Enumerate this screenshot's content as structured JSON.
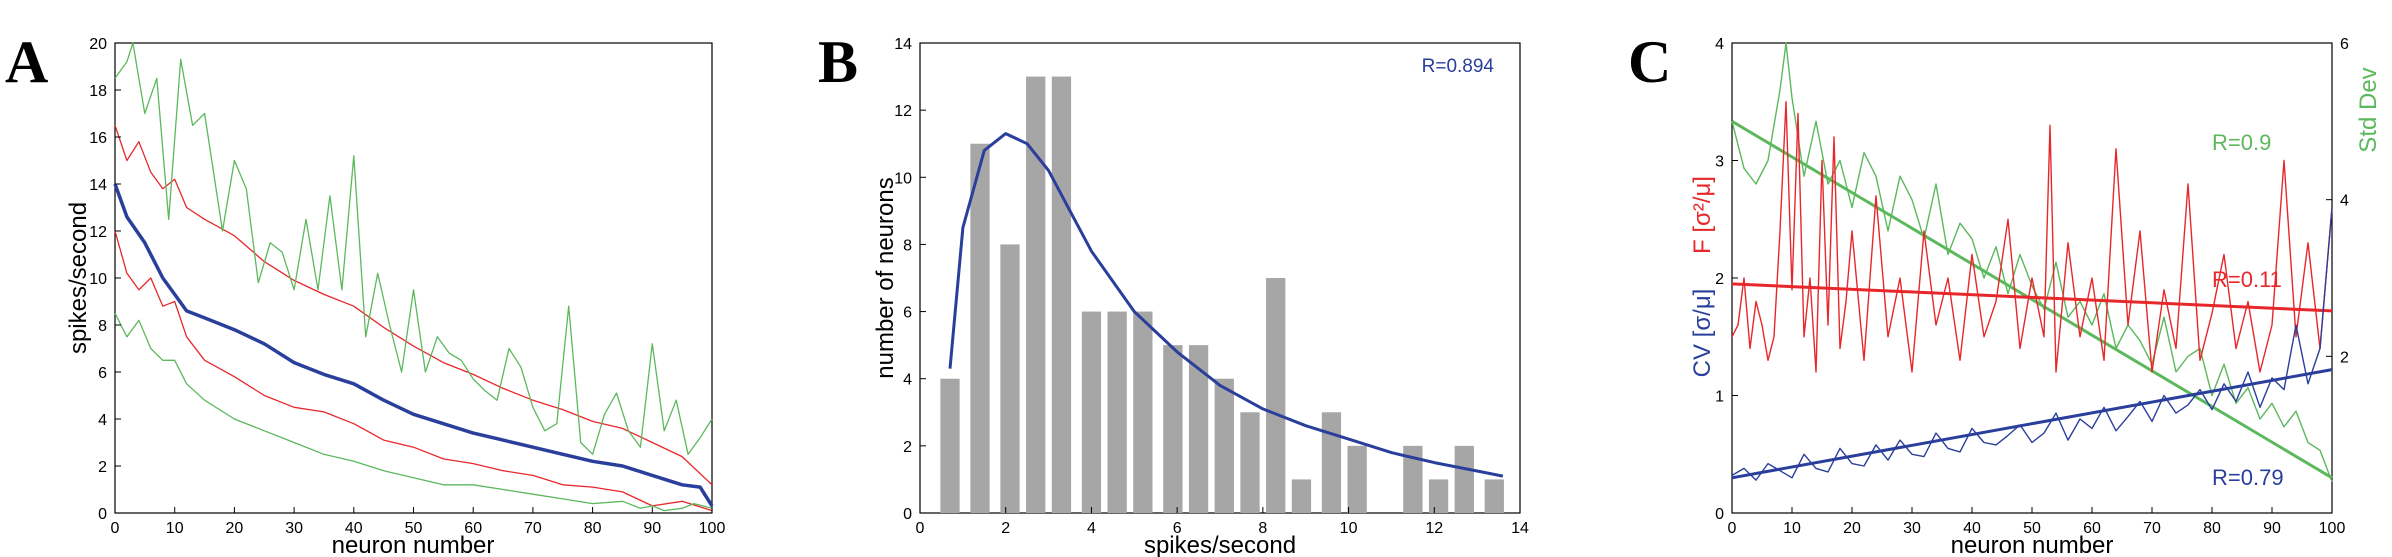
{
  "panels": [
    {
      "letter": "A",
      "xlabel": "neuron number",
      "ylabel": "spikes/second",
      "xticks": [
        "0",
        "10",
        "20",
        "30",
        "40",
        "50",
        "60",
        "70",
        "80",
        "90",
        "100"
      ],
      "yticks": [
        "0",
        "2",
        "4",
        "6",
        "8",
        "10",
        "12",
        "14",
        "16",
        "18",
        "20"
      ]
    },
    {
      "letter": "B",
      "xlabel": "spikes/second",
      "ylabel": "number of neurons",
      "xticks": [
        "0",
        "2",
        "4",
        "6",
        "8",
        "10",
        "12",
        "14"
      ],
      "yticks": [
        "0",
        "2",
        "4",
        "6",
        "8",
        "10",
        "12",
        "14"
      ],
      "annotation": "R=0.894"
    },
    {
      "letter": "C",
      "xlabel": "neuron number",
      "xticks": [
        "0",
        "10",
        "20",
        "30",
        "40",
        "50",
        "60",
        "70",
        "80",
        "90",
        "100"
      ],
      "left_yticks": [
        "0",
        "1",
        "2",
        "3",
        "4"
      ],
      "right_yticks": [
        "2",
        "4",
        "6"
      ],
      "ylabel_cv": "CV [σ/μ]",
      "ylabel_f": "F [σ²/μ]",
      "ylabel_std": "Std Dev",
      "annotations": [
        "R=0.9",
        "R=0.11",
        "R=0.79"
      ]
    }
  ],
  "colors": {
    "blue": "#2a3f9c",
    "red": "#e8272a",
    "green": "#5cb85c",
    "bar": "#a6a6a6"
  },
  "chart_data": [
    {
      "type": "line",
      "title": "",
      "xlabel": "neuron number",
      "ylabel": "spikes/second",
      "xlim": [
        0,
        100
      ],
      "ylim": [
        0,
        20
      ],
      "series": [
        {
          "color": "blue",
          "role": "mean",
          "x": [
            0,
            2,
            5,
            8,
            10,
            12,
            15,
            20,
            25,
            30,
            35,
            40,
            45,
            50,
            55,
            60,
            65,
            70,
            75,
            80,
            85,
            90,
            95,
            98,
            100
          ],
          "y": [
            14,
            12.6,
            11.5,
            10,
            9.3,
            8.6,
            8.3,
            7.8,
            7.2,
            6.4,
            5.9,
            5.5,
            4.8,
            4.2,
            3.8,
            3.4,
            3.1,
            2.8,
            2.5,
            2.2,
            2.0,
            1.6,
            1.2,
            1.1,
            0.3
          ]
        },
        {
          "color": "red",
          "role": "mean+sd",
          "x": [
            0,
            2,
            4,
            6,
            8,
            10,
            12,
            15,
            20,
            25,
            30,
            35,
            40,
            45,
            50,
            55,
            60,
            65,
            70,
            75,
            80,
            85,
            90,
            95,
            100
          ],
          "y": [
            16.5,
            15,
            15.8,
            14.5,
            13.8,
            14.2,
            13,
            12.5,
            11.8,
            10.7,
            9.9,
            9.3,
            8.8,
            7.9,
            7.1,
            6.4,
            5.9,
            5.3,
            4.8,
            4.4,
            3.9,
            3.6,
            3.0,
            2.4,
            1.2
          ]
        },
        {
          "color": "red",
          "role": "mean-sd",
          "x": [
            0,
            2,
            4,
            6,
            8,
            10,
            12,
            15,
            20,
            25,
            30,
            35,
            40,
            45,
            50,
            55,
            60,
            65,
            70,
            75,
            80,
            85,
            90,
            95,
            100
          ],
          "y": [
            12,
            10.2,
            9.5,
            10,
            8.8,
            9,
            7.5,
            6.5,
            5.8,
            5.0,
            4.5,
            4.3,
            3.8,
            3.1,
            2.8,
            2.3,
            2.1,
            1.8,
            1.6,
            1.2,
            1.1,
            0.9,
            0.3,
            0.5,
            0.1
          ]
        },
        {
          "color": "green",
          "role": "max",
          "x": [
            0,
            2,
            3,
            5,
            7,
            9,
            11,
            13,
            15,
            18,
            20,
            22,
            24,
            26,
            28,
            30,
            32,
            34,
            36,
            38,
            40,
            42,
            44,
            46,
            48,
            50,
            52,
            54,
            56,
            58,
            60,
            62,
            64,
            66,
            68,
            70,
            72,
            74,
            76,
            78,
            80,
            82,
            84,
            86,
            88,
            90,
            92,
            94,
            96,
            98,
            100
          ],
          "y": [
            18.5,
            19.2,
            20,
            17,
            18.5,
            12.5,
            19.3,
            16.5,
            17,
            12,
            15,
            13.8,
            9.8,
            11.5,
            11.1,
            9.5,
            12.5,
            9.5,
            13.5,
            9.5,
            15.2,
            7.5,
            10.2,
            8,
            6,
            9.5,
            6,
            7.5,
            6.8,
            6.5,
            5.7,
            5.2,
            4.8,
            7,
            6.2,
            4.5,
            3.5,
            3.8,
            8.8,
            3,
            2.5,
            4.2,
            5.1,
            3.5,
            2.8,
            7.2,
            3.5,
            4.8,
            2.5,
            3.2,
            4
          ]
        },
        {
          "color": "green",
          "role": "min",
          "x": [
            0,
            2,
            4,
            6,
            8,
            10,
            12,
            15,
            20,
            25,
            30,
            35,
            40,
            45,
            50,
            55,
            60,
            65,
            70,
            75,
            80,
            85,
            88,
            90,
            92,
            95,
            97,
            100
          ],
          "y": [
            8.5,
            7.5,
            8.2,
            7,
            6.5,
            6.5,
            5.5,
            4.8,
            4,
            3.5,
            3,
            2.5,
            2.2,
            1.8,
            1.5,
            1.2,
            1.2,
            1,
            0.8,
            0.6,
            0.4,
            0.5,
            0.2,
            0.3,
            0.1,
            0.2,
            0.4,
            0.2
          ]
        }
      ]
    },
    {
      "type": "bar",
      "title": "",
      "xlabel": "spikes/second",
      "ylabel": "number of neurons",
      "xlim": [
        0,
        14
      ],
      "ylim": [
        0,
        14
      ],
      "bar_width": 0.45,
      "bars": {
        "x": [
          0.7,
          1.4,
          2.1,
          2.7,
          3.3,
          4.0,
          4.6,
          5.2,
          5.9,
          6.5,
          7.1,
          7.7,
          8.3,
          8.9,
          9.6,
          10.2,
          11.5,
          12.1,
          12.7,
          13.4
        ],
        "y": [
          4,
          11,
          8,
          13,
          13,
          6,
          6,
          6,
          5,
          5,
          4,
          3,
          7,
          1,
          3,
          2,
          2,
          1,
          2,
          1
        ]
      },
      "fit": {
        "color": "blue",
        "x": [
          0.7,
          1.0,
          1.5,
          2.0,
          2.5,
          3.0,
          3.5,
          4.0,
          5.0,
          6.0,
          7.0,
          8.0,
          9.0,
          10.0,
          11.0,
          12.0,
          13.0,
          13.6
        ],
        "y": [
          4.3,
          8.5,
          10.8,
          11.3,
          11.0,
          10.2,
          9.0,
          7.8,
          6.0,
          4.8,
          3.8,
          3.1,
          2.6,
          2.2,
          1.8,
          1.5,
          1.25,
          1.1
        ]
      },
      "annotation": "R=0.894"
    },
    {
      "type": "line",
      "title": "",
      "xlabel": "neuron number",
      "xlim": [
        0,
        100
      ],
      "ylim_left": [
        0,
        4
      ],
      "ylim_right": [
        0,
        6
      ],
      "series": [
        {
          "color": "green",
          "axis": "right",
          "role": "Std Dev",
          "x": [
            0,
            2,
            4,
            6,
            8,
            9,
            10,
            12,
            14,
            16,
            18,
            20,
            22,
            24,
            26,
            28,
            30,
            32,
            34,
            36,
            38,
            40,
            42,
            44,
            46,
            48,
            50,
            52,
            54,
            56,
            58,
            60,
            62,
            64,
            66,
            68,
            70,
            72,
            74,
            76,
            78,
            80,
            82,
            84,
            86,
            88,
            90,
            92,
            94,
            96,
            98,
            100
          ],
          "y": [
            5.0,
            4.4,
            4.2,
            4.5,
            5.4,
            6.0,
            5.3,
            4.3,
            5.0,
            4.2,
            4.5,
            3.9,
            4.6,
            4.3,
            3.6,
            4.3,
            4.0,
            3.5,
            4.2,
            3.3,
            3.7,
            3.5,
            3.0,
            3.4,
            2.8,
            3.3,
            2.9,
            2.6,
            3.2,
            2.5,
            2.7,
            2.4,
            2.8,
            2.1,
            2.4,
            2.2,
            1.9,
            2.5,
            1.8,
            2.0,
            2.1,
            1.5,
            1.9,
            1.4,
            1.6,
            1.2,
            1.4,
            1.1,
            1.3,
            0.9,
            0.8,
            0.4
          ]
        },
        {
          "color": "green",
          "axis": "right",
          "role": "fit",
          "x": [
            0,
            100
          ],
          "y": [
            5.0,
            0.45
          ]
        },
        {
          "color": "red",
          "axis": "left",
          "role": "F",
          "x": [
            0,
            1,
            2,
            3,
            4,
            5,
            6,
            7,
            8,
            9,
            10,
            11,
            12,
            13,
            14,
            15,
            16,
            17,
            18,
            19,
            20,
            22,
            24,
            26,
            28,
            30,
            32,
            34,
            36,
            38,
            40,
            42,
            44,
            46,
            48,
            50,
            52,
            53,
            54,
            56,
            58,
            60,
            62,
            64,
            66,
            68,
            70,
            72,
            74,
            76,
            78,
            80,
            82,
            84,
            86,
            88,
            90,
            92,
            94,
            96,
            98,
            100
          ],
          "y": [
            1.5,
            1.6,
            2.0,
            1.4,
            1.8,
            1.6,
            1.3,
            1.5,
            2.4,
            3.5,
            1.9,
            3.4,
            1.5,
            2.0,
            1.2,
            3.0,
            1.6,
            3.2,
            1.4,
            1.8,
            2.4,
            1.3,
            2.7,
            1.5,
            2.0,
            1.2,
            2.4,
            1.6,
            2.0,
            1.3,
            2.2,
            1.5,
            1.8,
            2.5,
            1.4,
            2.0,
            1.5,
            3.3,
            1.2,
            2.3,
            1.5,
            2.0,
            1.3,
            3.1,
            1.6,
            2.4,
            1.2,
            1.9,
            1.4,
            2.8,
            1.3,
            1.7,
            2.2,
            1.4,
            1.8,
            1.2,
            1.6,
            3.0,
            1.5,
            2.3,
            1.4,
            2.6
          ]
        },
        {
          "color": "red",
          "axis": "left",
          "role": "fit",
          "x": [
            0,
            100
          ],
          "y": [
            1.95,
            1.72
          ]
        },
        {
          "color": "blue",
          "axis": "left",
          "role": "CV",
          "x": [
            0,
            2,
            4,
            6,
            8,
            10,
            12,
            14,
            16,
            18,
            20,
            22,
            24,
            26,
            28,
            30,
            32,
            34,
            36,
            38,
            40,
            42,
            44,
            46,
            48,
            50,
            52,
            54,
            56,
            58,
            60,
            62,
            64,
            66,
            68,
            70,
            72,
            74,
            76,
            78,
            80,
            82,
            84,
            86,
            88,
            90,
            92,
            94,
            96,
            98,
            100
          ],
          "y": [
            0.32,
            0.38,
            0.28,
            0.42,
            0.36,
            0.3,
            0.5,
            0.38,
            0.35,
            0.55,
            0.42,
            0.4,
            0.58,
            0.45,
            0.62,
            0.5,
            0.48,
            0.68,
            0.55,
            0.52,
            0.72,
            0.6,
            0.58,
            0.66,
            0.75,
            0.6,
            0.68,
            0.85,
            0.62,
            0.8,
            0.72,
            0.9,
            0.7,
            0.82,
            0.95,
            0.78,
            1.0,
            0.85,
            0.92,
            1.05,
            0.88,
            1.1,
            0.95,
            1.2,
            0.9,
            1.15,
            1.05,
            1.6,
            1.1,
            1.4,
            2.6
          ]
        },
        {
          "color": "blue",
          "axis": "left",
          "role": "fit",
          "x": [
            0,
            100
          ],
          "y": [
            0.3,
            1.22
          ]
        }
      ],
      "annotations": [
        "R=0.9",
        "R=0.11",
        "R=0.79"
      ]
    }
  ]
}
